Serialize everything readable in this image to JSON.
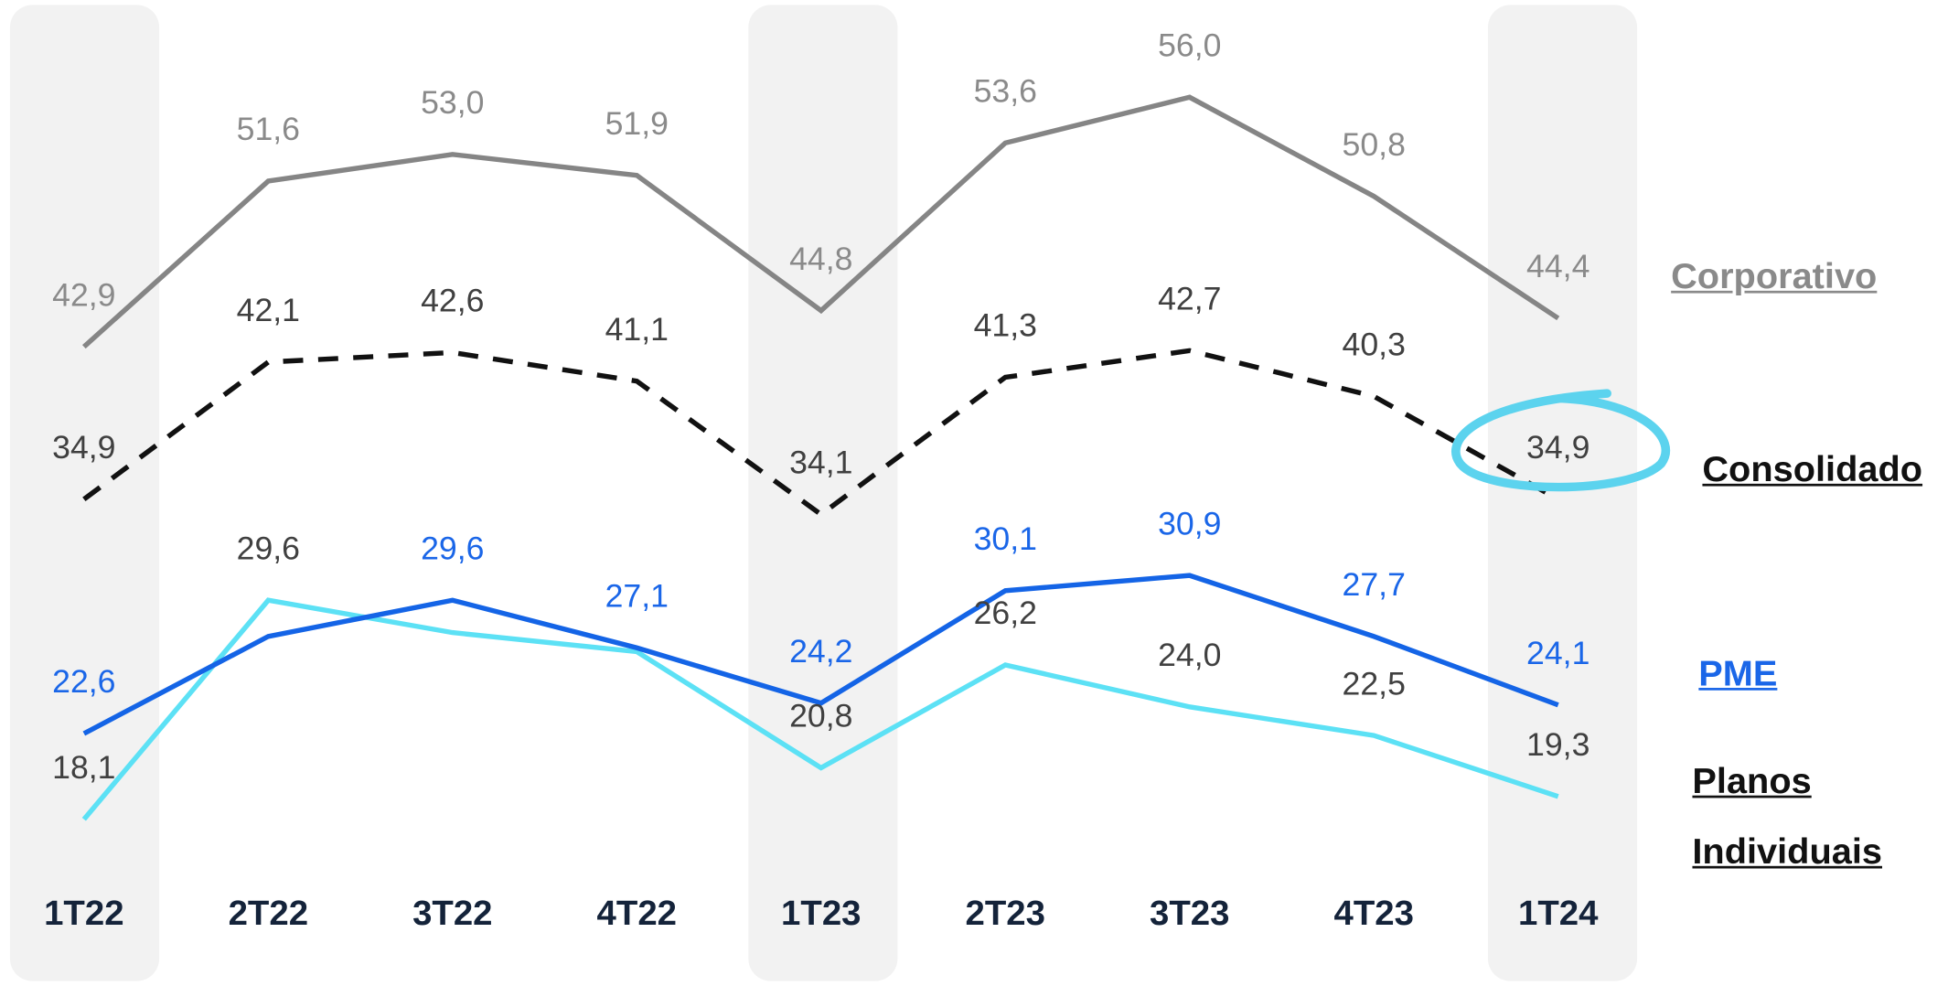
{
  "chart_data": {
    "type": "line",
    "categories": [
      "1T22",
      "2T22",
      "3T22",
      "4T22",
      "1T23",
      "2T23",
      "3T23",
      "4T23",
      "1T24"
    ],
    "series": [
      {
        "name": "Planos Individuais",
        "color": "#5ce1f5",
        "label_color": "#404040",
        "legend_color": "#111111",
        "line_style": "solid",
        "values": [
          18.1,
          29.6,
          27.9,
          26.9,
          20.8,
          26.2,
          24.0,
          22.5,
          19.3
        ],
        "value_labels": [
          "18,1",
          "29,6",
          null,
          null,
          "20,8",
          "26,2",
          "24,0",
          "22,5",
          "19,3"
        ]
      },
      {
        "name": "PME",
        "color": "#1464e6",
        "label_color": "#1a66e8",
        "legend_color": "#1a66e8",
        "line_style": "solid",
        "values": [
          22.6,
          27.7,
          29.6,
          27.1,
          24.2,
          30.1,
          30.9,
          27.7,
          24.1
        ],
        "value_labels": [
          "22,6",
          null,
          "29,6",
          "27,1",
          "24,2",
          "30,1",
          "30,9",
          "27,7",
          "24,1"
        ]
      },
      {
        "name": "Consolidado",
        "color": "#111111",
        "label_color": "#404040",
        "legend_color": "#111111",
        "line_style": "dashed",
        "values": [
          34.9,
          42.1,
          42.6,
          41.1,
          34.1,
          41.3,
          42.7,
          40.3,
          34.9
        ],
        "value_labels": [
          "34,9",
          "42,1",
          "42,6",
          "41,1",
          "34,1",
          "41,3",
          "42,7",
          "40,3",
          "34,9"
        ]
      },
      {
        "name": "Corporativo",
        "color": "#858585",
        "label_color": "#8a8a8a",
        "legend_color": "#8a8a8a",
        "line_style": "solid",
        "values": [
          42.9,
          51.6,
          53.0,
          51.9,
          44.8,
          53.6,
          56.0,
          50.8,
          44.4
        ],
        "value_labels": [
          "42,9",
          "51,6",
          "53,0",
          "51,9",
          "44,8",
          "53,6",
          "56,0",
          "50,8",
          "44,4"
        ]
      }
    ]
  }
}
